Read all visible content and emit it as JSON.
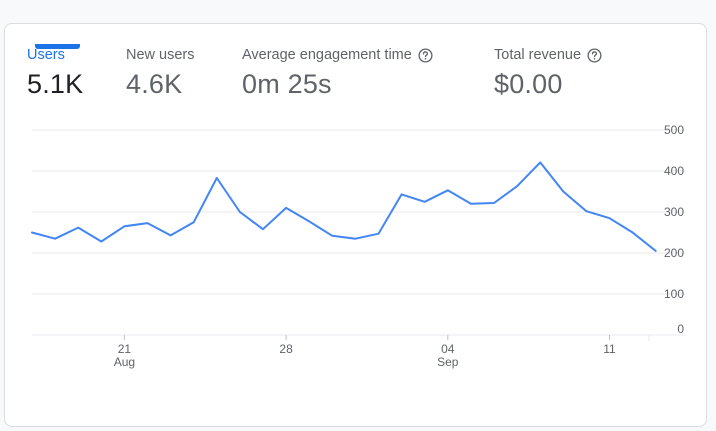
{
  "metrics": [
    {
      "label": "Users",
      "value": "5.1K",
      "help": false,
      "active": true
    },
    {
      "label": "New users",
      "value": "4.6K",
      "help": false,
      "active": false
    },
    {
      "label": "Average engagement time",
      "value": "0m 25s",
      "help": true,
      "active": false
    },
    {
      "label": "Total revenue",
      "value": "$0.00",
      "help": true,
      "active": false
    }
  ],
  "colors": {
    "accent": "#1a73e8",
    "line": "#4285f4",
    "grid": "#e8eaed"
  },
  "icons": {
    "help": "help-circle-icon"
  },
  "chart_data": {
    "type": "line",
    "title": "",
    "xlabel": "",
    "ylabel": "",
    "y_axis_side": "right",
    "ylim": [
      0,
      500
    ],
    "y_ticks": [
      0,
      100,
      200,
      300,
      400,
      500
    ],
    "y_tick_labels": [
      "0",
      "100",
      "200",
      "300",
      "400",
      "500"
    ],
    "x_start": "Aug 17",
    "x_ticks": [
      {
        "index": 4,
        "label": "21",
        "sublabel": "Aug"
      },
      {
        "index": 11,
        "label": "28",
        "sublabel": ""
      },
      {
        "index": 18,
        "label": "04",
        "sublabel": "Sep"
      },
      {
        "index": 25,
        "label": "11",
        "sublabel": ""
      }
    ],
    "grid": true,
    "series": [
      {
        "values": [
          250,
          235,
          262,
          228,
          265,
          273,
          243,
          275,
          383,
          300,
          258,
          310,
          277,
          242,
          235,
          247,
          343,
          325,
          353,
          320,
          322,
          363,
          421,
          350,
          302,
          285,
          250,
          205
        ]
      }
    ]
  }
}
